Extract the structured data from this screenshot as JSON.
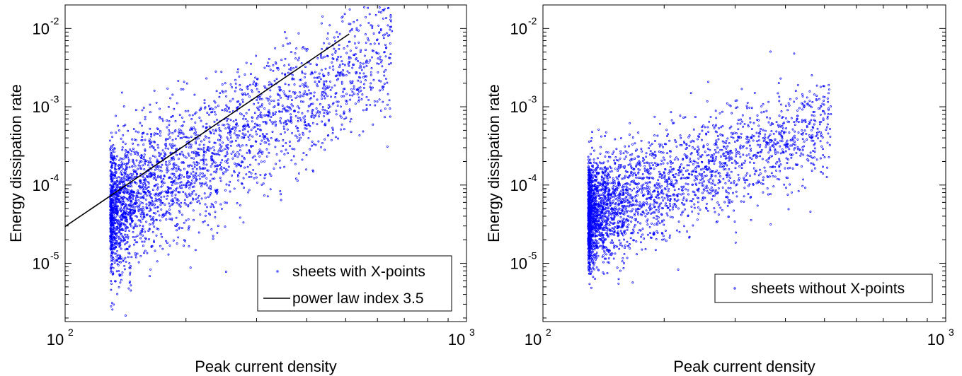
{
  "chart_data": [
    {
      "type": "scatter",
      "title": "",
      "xlabel": "Peak current density",
      "ylabel": "Energy dissipation rate",
      "xscale": "log",
      "yscale": "log",
      "xlim": [
        100,
        1000
      ],
      "ylim": [
        1.8e-06,
        0.02
      ],
      "xticks": [
        {
          "base": "10",
          "exp": "2"
        },
        {
          "base": "10",
          "exp": "3"
        }
      ],
      "yticks": [
        {
          "base": "10",
          "exp": "-2"
        },
        {
          "base": "10",
          "exp": "-3"
        },
        {
          "base": "10",
          "exp": "-4"
        },
        {
          "base": "10",
          "exp": "-5"
        }
      ],
      "grid": false,
      "legend_position": "bottom-right",
      "marker_color": "#0000ff",
      "line_color": "#000000",
      "series": [
        {
          "name": "sheets with X-points",
          "kind": "scatter",
          "count": 3000,
          "x_range": [
            130,
            650
          ],
          "y_median": 0.00012,
          "fit_exponent": 3.5
        },
        {
          "name": "power law index 3.5",
          "kind": "line",
          "x": [
            100,
            510
          ],
          "y": [
            2.95e-05,
            0.0085
          ]
        }
      ]
    },
    {
      "type": "scatter",
      "title": "",
      "xlabel": "Peak current density",
      "ylabel": "Energy dissipation rate",
      "xscale": "log",
      "yscale": "log",
      "xlim": [
        100,
        1000
      ],
      "ylim": [
        1.8e-06,
        0.02
      ],
      "xticks": [
        {
          "base": "10",
          "exp": "2"
        },
        {
          "base": "10",
          "exp": "3"
        }
      ],
      "yticks": [
        {
          "base": "10",
          "exp": "-2"
        },
        {
          "base": "10",
          "exp": "-3"
        },
        {
          "base": "10",
          "exp": "-4"
        },
        {
          "base": "10",
          "exp": "-5"
        }
      ],
      "grid": false,
      "legend_position": "bottom-right",
      "marker_color": "#0000ff",
      "series": [
        {
          "name": "sheets without X-points",
          "kind": "scatter",
          "count": 3000,
          "x_range": [
            130,
            520
          ],
          "y_median": 5e-05,
          "fit_exponent": 2.0
        }
      ]
    }
  ]
}
